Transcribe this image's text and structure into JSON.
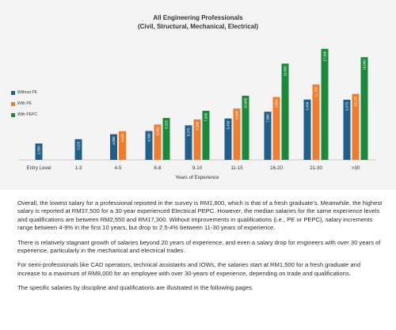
{
  "chart_data": {
    "type": "bar",
    "title": "All Engineering Professionals",
    "subtitle": "(Civil, Structural, Mechanical, Electrical)",
    "xlabel": "Years of Experience",
    "ylabel": "",
    "ylim": [
      0,
      18500
    ],
    "legend_position": "left",
    "categories": [
      "Entry Level",
      "1-3",
      "4-5",
      "6-8",
      "9-10",
      "11-15",
      "16-20",
      "21-30",
      ">30"
    ],
    "series": [
      {
        "name": "Without PE",
        "color": "#1f5f8b",
        "values": [
          2550,
          3225,
          4000,
          4500,
          5375,
          6450,
          7500,
          9400,
          9375
        ],
        "labels": [
          "2,550",
          "3,225",
          "4,000",
          "4,500",
          "5,375",
          "6,450",
          "7,500",
          "9,400",
          "9,375"
        ]
      },
      {
        "name": "With PE",
        "color": "#f07d2e",
        "values": [
          null,
          null,
          4450,
          5500,
          6300,
          8000,
          9800,
          11750,
          10275
        ],
        "labels": [
          null,
          null,
          "4,450",
          "5,500",
          "6,300",
          "8,000",
          "9,800",
          "11,750",
          "10,275"
        ]
      },
      {
        "name": "With PEPC",
        "color": "#1a8a3a",
        "values": [
          null,
          null,
          null,
          6525,
          7650,
          10000,
          15000,
          17300,
          16000
        ],
        "labels": [
          null,
          null,
          null,
          "6,525",
          "7,650",
          "10,000",
          "15,000",
          "17,300",
          "16,000"
        ]
      }
    ]
  },
  "text": {
    "p1": "Overall, the lowest salary for a professional reported in the survey is RM1,800, which is that of a fresh graduate's. Meanwhile, the highest salary is reported at RM37,500 for a 30-year experienced Electrical PEPC. However, the median salaries for the same experience levels and qualifications are between RM2,550 and RM17,300. Without improvements in qualifications (i.e., PE or PEPC), salary increments range between 4-9% in the first 10 years, but drop to 2.5-4% between 11-30 years of experience.",
    "p2": "There is relatively stagnant growth of salaries beyond 20 years of experience, and even a salary drop for engineers with over 30 years of experience, particularly in the mechanical and electrical trades.",
    "p3": "For semi-professionals like CAD operators, technical assistants and IOWs, the salaries start at RM1,500 for a fresh graduate and increase to a maximum of RM8,000 for an employee with over 30-years of experience, depending on trade and qualifications.",
    "p4": "The specific salaries by discipline and qualifications are illustrated in the following pages."
  }
}
